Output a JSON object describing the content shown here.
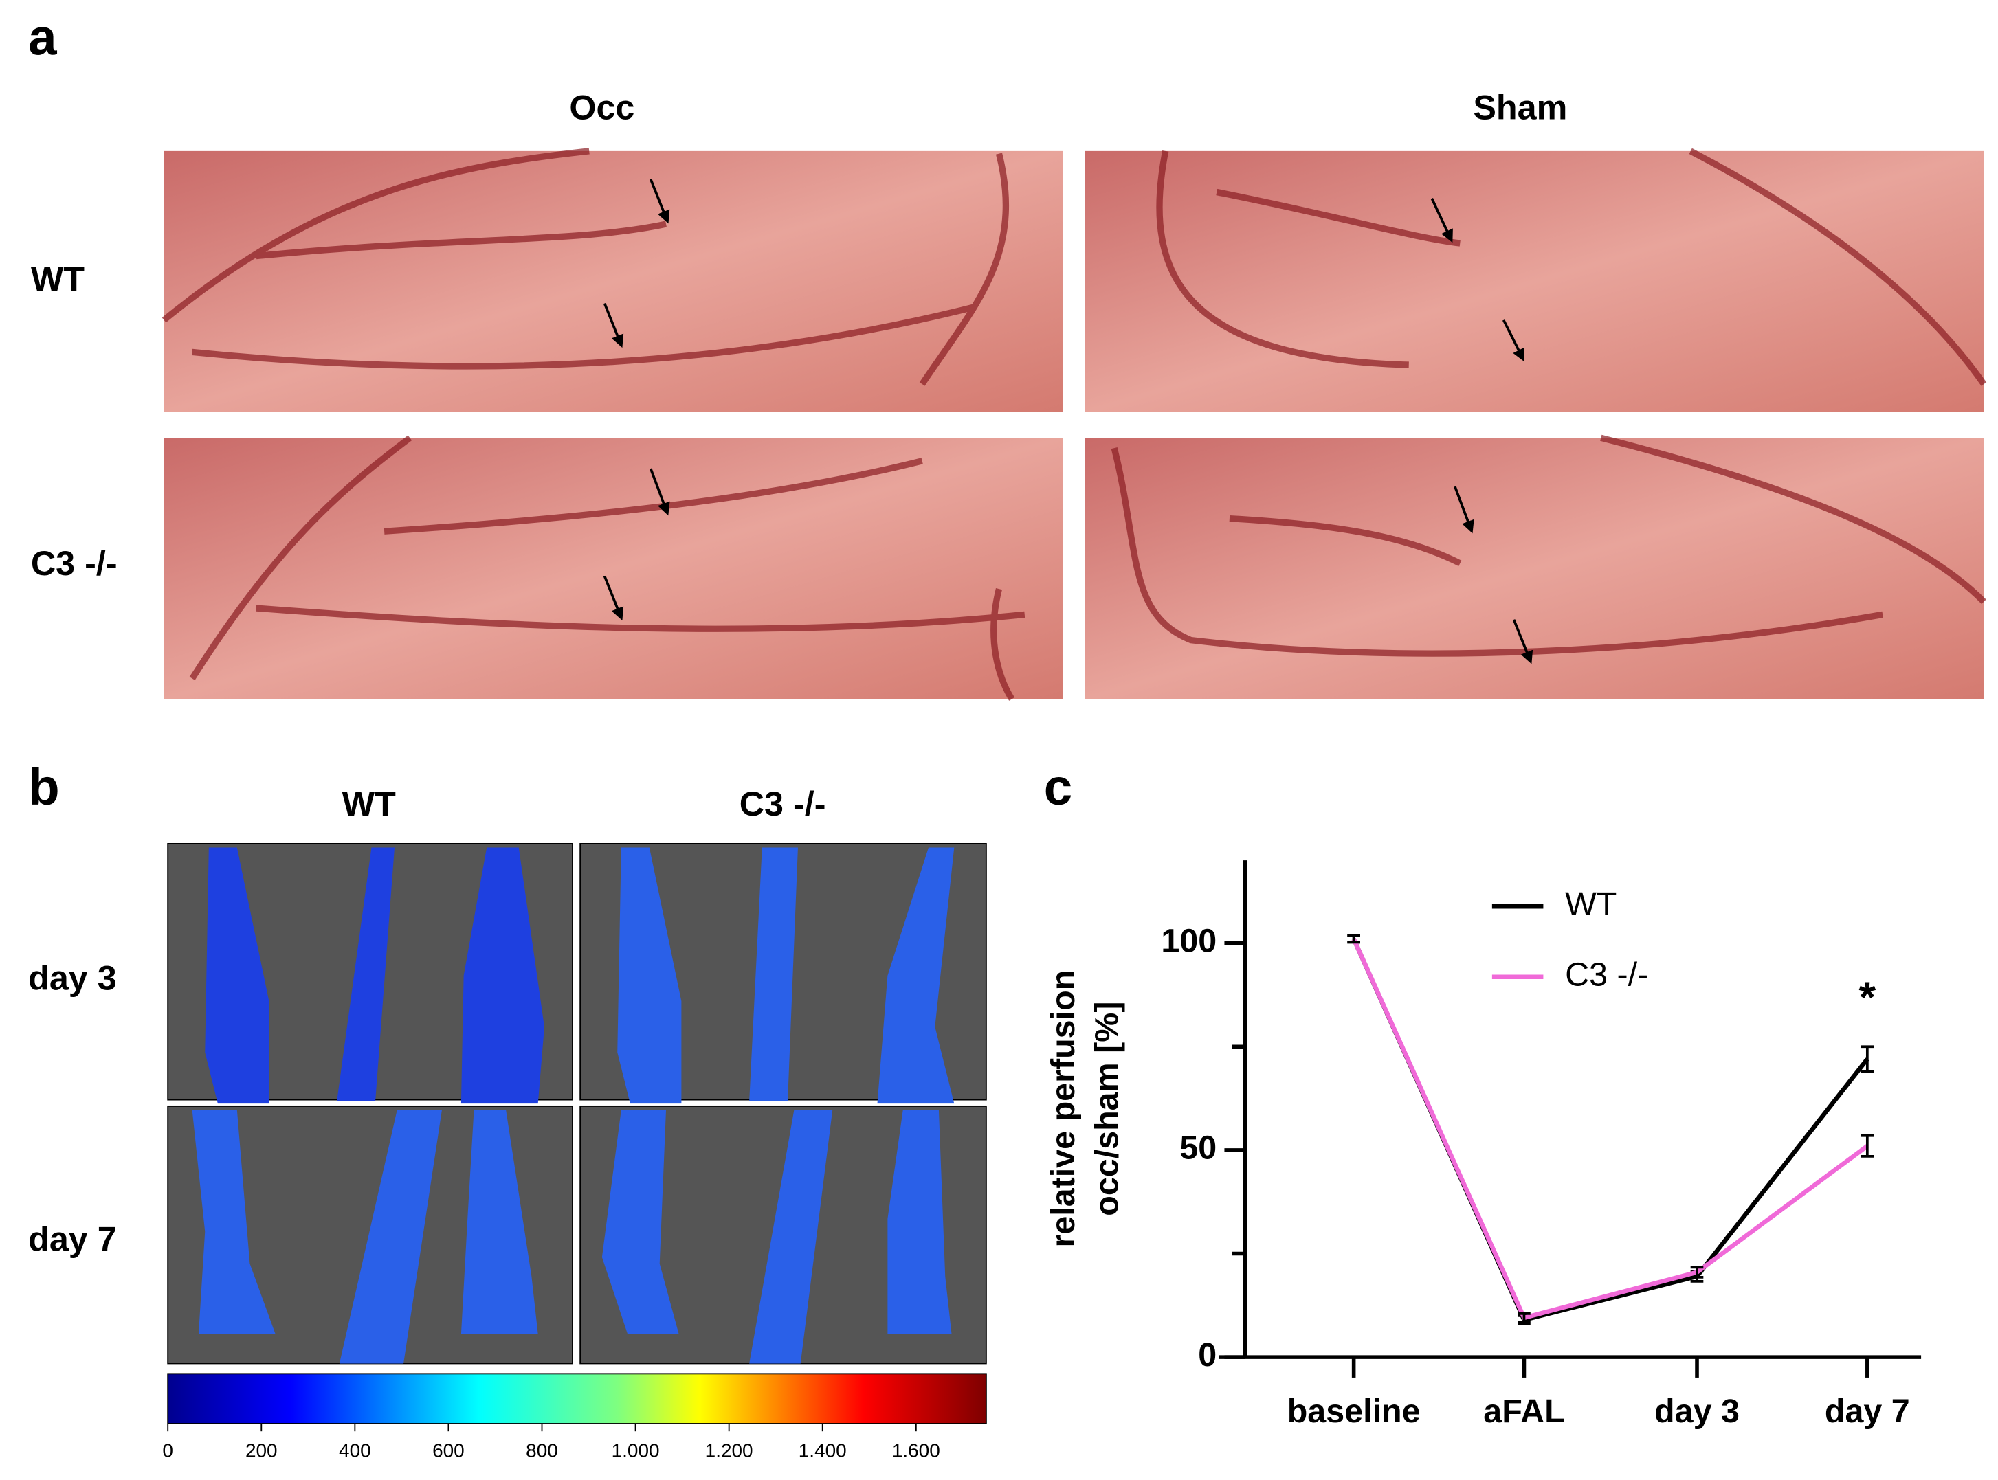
{
  "panel_a": {
    "label": "a",
    "columns": [
      "Occ",
      "Sham"
    ],
    "rows": [
      "WT",
      "C3 -/-"
    ]
  },
  "panel_b": {
    "label": "b",
    "columns": [
      "WT",
      "C3 -/-"
    ],
    "rows": [
      "day 3",
      "day 7"
    ],
    "colorbar": {
      "lim": [
        0,
        1750
      ],
      "ticks": [
        0,
        200,
        400,
        600,
        800,
        {
          "value": 1000,
          "label": "1.000"
        },
        {
          "value": 1200,
          "label": "1.200"
        },
        {
          "value": 1400,
          "label": "1.400"
        },
        {
          "value": 1600,
          "label": "1.600"
        }
      ]
    }
  },
  "chart_data": {
    "type": "line",
    "panel_label": "c",
    "ylabel": [
      "relative perfusion",
      "occ/sham [%]"
    ],
    "categories": [
      "baseline",
      "aFAL",
      "day 3",
      "day 7"
    ],
    "series": [
      {
        "name": "WT",
        "color": "#000000",
        "values": [
          101,
          9,
          19.5,
          72
        ],
        "errors": [
          0.8,
          1,
          1.2,
          3
        ]
      },
      {
        "name": "C3 -/-",
        "color": "#f06ad8",
        "values": [
          101,
          9.5,
          20.5,
          51
        ],
        "errors": [
          0.8,
          1,
          1.2,
          2.5
        ]
      }
    ],
    "ylim": [
      0,
      120
    ],
    "yticks": [
      0,
      50,
      100
    ],
    "yminor_ticks": [
      25,
      75
    ],
    "annotations": [
      {
        "text": "*",
        "category": 3
      }
    ],
    "legend": "upper center"
  }
}
